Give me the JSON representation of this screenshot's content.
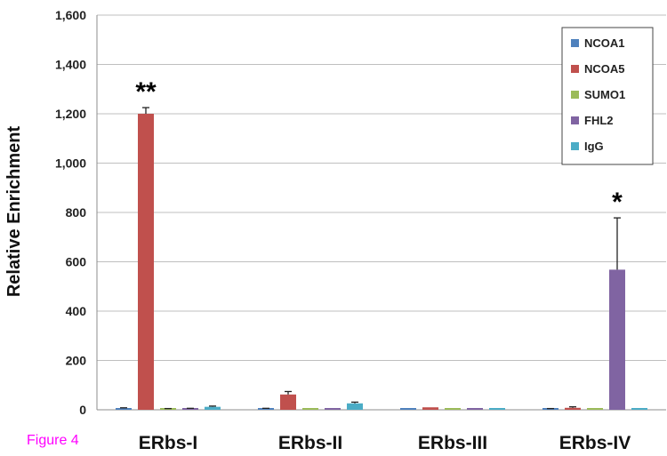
{
  "figure_label": "Figure 4",
  "chart_data": {
    "type": "bar",
    "title": "",
    "xlabel": "",
    "ylabel": "Relative Enrichment",
    "ylim": [
      0,
      1600
    ],
    "yticks": [
      0,
      200,
      400,
      600,
      800,
      1000,
      1200,
      1400,
      1600
    ],
    "ytick_labels": [
      "0",
      "200",
      "400",
      "600",
      "800",
      "1,000",
      "1,200",
      "1,400",
      "1,600"
    ],
    "grid": true,
    "legend_position": "top-right",
    "categories": [
      "ERbs-I",
      "ERbs-II",
      "ERbs-III",
      "ERbs-IV"
    ],
    "series": [
      {
        "name": "NCOA1",
        "color": "#4f81bd",
        "values": [
          6,
          5,
          3,
          4
        ],
        "errors": [
          2,
          1,
          0,
          1
        ]
      },
      {
        "name": "NCOA5",
        "color": "#c0504d",
        "values": [
          1200,
          62,
          10,
          8
        ],
        "errors": [
          25,
          12,
          0,
          4
        ]
      },
      {
        "name": "SUMO1",
        "color": "#9bbb59",
        "values": [
          4,
          4,
          3,
          4
        ],
        "errors": [
          1,
          0,
          0,
          0
        ]
      },
      {
        "name": "FHL2",
        "color": "#8064a2",
        "values": [
          5,
          4,
          3,
          568
        ],
        "errors": [
          1,
          0,
          0,
          210
        ]
      },
      {
        "name": "IgG",
        "color": "#4bacc6",
        "values": [
          12,
          26,
          4,
          5
        ],
        "errors": [
          3,
          5,
          0,
          0
        ]
      }
    ],
    "annotations": [
      {
        "text": "**",
        "category": "ERbs-I",
        "series": "NCOA5"
      },
      {
        "text": "*",
        "category": "ERbs-IV",
        "series": "FHL2"
      }
    ]
  }
}
